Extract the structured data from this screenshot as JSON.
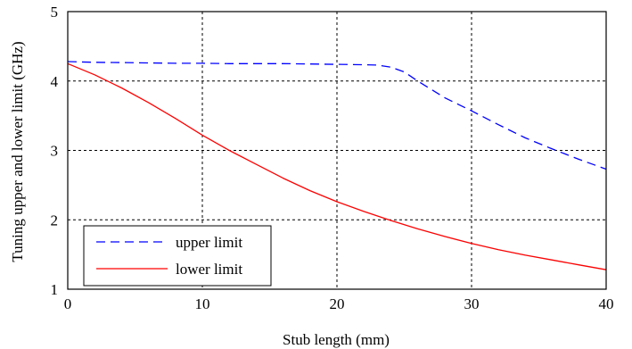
{
  "chart_data": {
    "type": "line",
    "title": "",
    "xlabel": "Stub length (mm)",
    "ylabel": "Tuning upper and lower limit (GHz)",
    "xlim": [
      0,
      40
    ],
    "ylim": [
      1,
      5
    ],
    "xticks": [
      0,
      10,
      20,
      30,
      40
    ],
    "yticks": [
      1,
      2,
      3,
      4,
      5
    ],
    "grid": true,
    "legend_position": "bottom-left",
    "series": [
      {
        "name": "upper limit",
        "color": "#0000ff",
        "style": "dashed",
        "x": [
          0,
          2,
          4,
          6,
          8,
          10,
          12,
          14,
          16,
          18,
          20,
          22,
          23,
          24,
          25,
          26,
          27,
          28,
          30,
          32,
          34,
          36,
          38,
          40
        ],
        "y": [
          4.28,
          4.27,
          4.265,
          4.26,
          4.255,
          4.255,
          4.25,
          4.25,
          4.25,
          4.245,
          4.24,
          4.235,
          4.23,
          4.2,
          4.13,
          4.0,
          3.88,
          3.76,
          3.57,
          3.37,
          3.18,
          3.02,
          2.87,
          2.73
        ]
      },
      {
        "name": "lower limit",
        "color": "#ff0000",
        "style": "solid",
        "x": [
          0,
          2,
          4,
          6,
          8,
          10,
          12,
          14,
          16,
          18,
          20,
          22,
          24,
          26,
          28,
          30,
          32,
          34,
          36,
          38,
          40
        ],
        "y": [
          4.25,
          4.09,
          3.9,
          3.69,
          3.46,
          3.22,
          3.0,
          2.8,
          2.6,
          2.42,
          2.26,
          2.12,
          1.99,
          1.87,
          1.76,
          1.66,
          1.57,
          1.49,
          1.42,
          1.35,
          1.28
        ]
      }
    ]
  }
}
